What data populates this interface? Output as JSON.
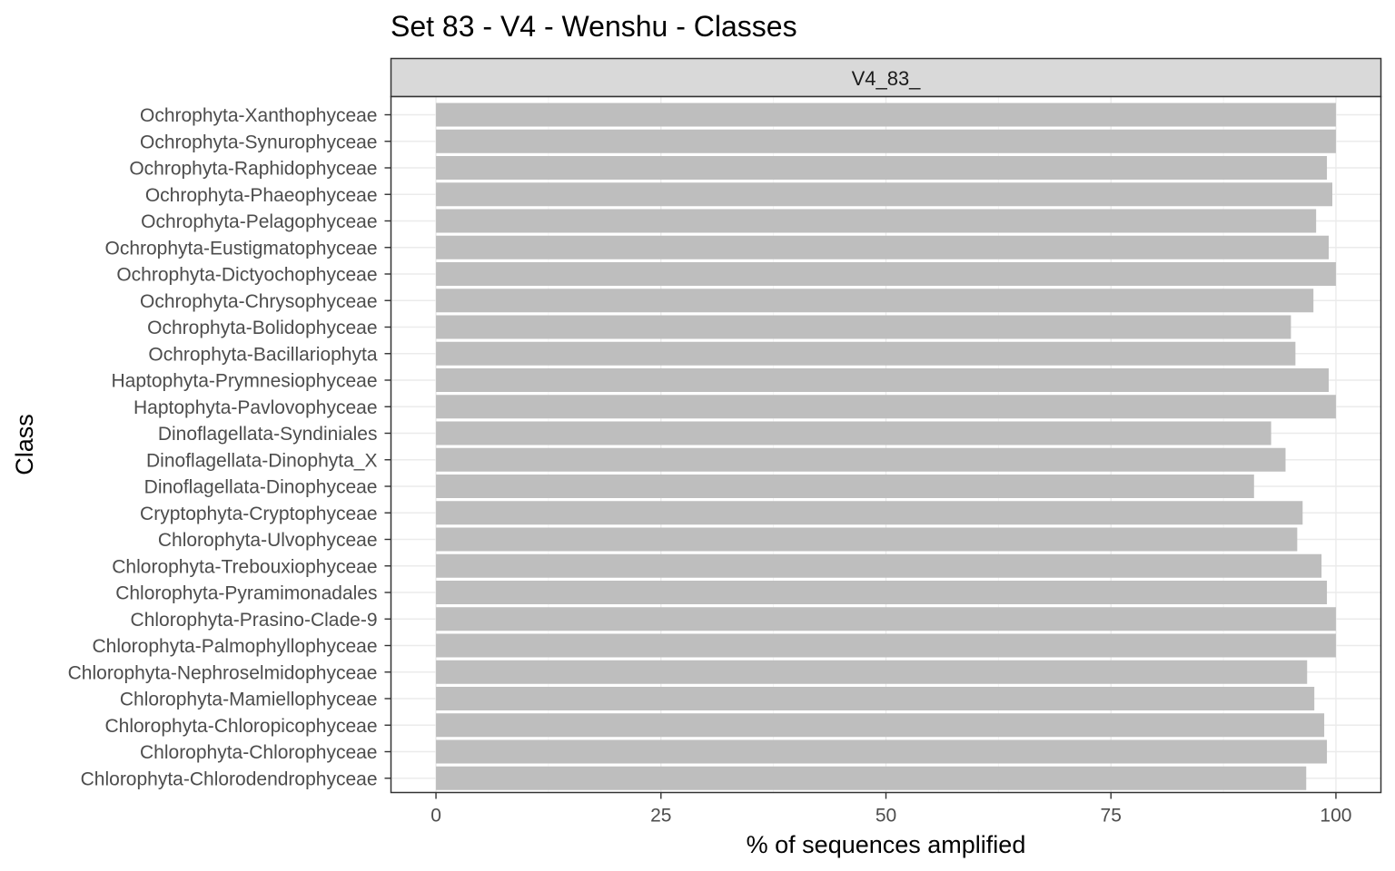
{
  "chart_data": {
    "type": "bar",
    "orientation": "horizontal",
    "title": "Set 83 - V4 - Wenshu - Classes",
    "facet_label": "V4_83_",
    "xlabel": "% of sequences amplified",
    "ylabel": "Class",
    "xlim": [
      -5,
      105
    ],
    "x_ticks": [
      0,
      25,
      50,
      75,
      100
    ],
    "grid": true,
    "bar_color": "#bebebe",
    "categories": [
      "Ochrophyta-Xanthophyceae",
      "Ochrophyta-Synurophyceae",
      "Ochrophyta-Raphidophyceae",
      "Ochrophyta-Phaeophyceae",
      "Ochrophyta-Pelagophyceae",
      "Ochrophyta-Eustigmatophyceae",
      "Ochrophyta-Dictyochophyceae",
      "Ochrophyta-Chrysophyceae",
      "Ochrophyta-Bolidophyceae",
      "Ochrophyta-Bacillariophyta",
      "Haptophyta-Prymnesiophyceae",
      "Haptophyta-Pavlovophyceae",
      "Dinoflagellata-Syndiniales",
      "Dinoflagellata-Dinophyta_X",
      "Dinoflagellata-Dinophyceae",
      "Cryptophyta-Cryptophyceae",
      "Chlorophyta-Ulvophyceae",
      "Chlorophyta-Trebouxiophyceae",
      "Chlorophyta-Pyramimonadales",
      "Chlorophyta-Prasino-Clade-9",
      "Chlorophyta-Palmophyllophyceae",
      "Chlorophyta-Nephroselmidophyceae",
      "Chlorophyta-Mamiellophyceae",
      "Chlorophyta-Chloropicophyceae",
      "Chlorophyta-Chlorophyceae",
      "Chlorophyta-Chlorodendrophyceae"
    ],
    "values": [
      100,
      100,
      99.0,
      99.6,
      97.8,
      99.2,
      100,
      97.5,
      95.0,
      95.5,
      99.2,
      100,
      92.8,
      94.4,
      90.9,
      96.3,
      95.7,
      98.4,
      99.0,
      100,
      100,
      96.8,
      97.6,
      98.7,
      99.0,
      96.7
    ]
  }
}
